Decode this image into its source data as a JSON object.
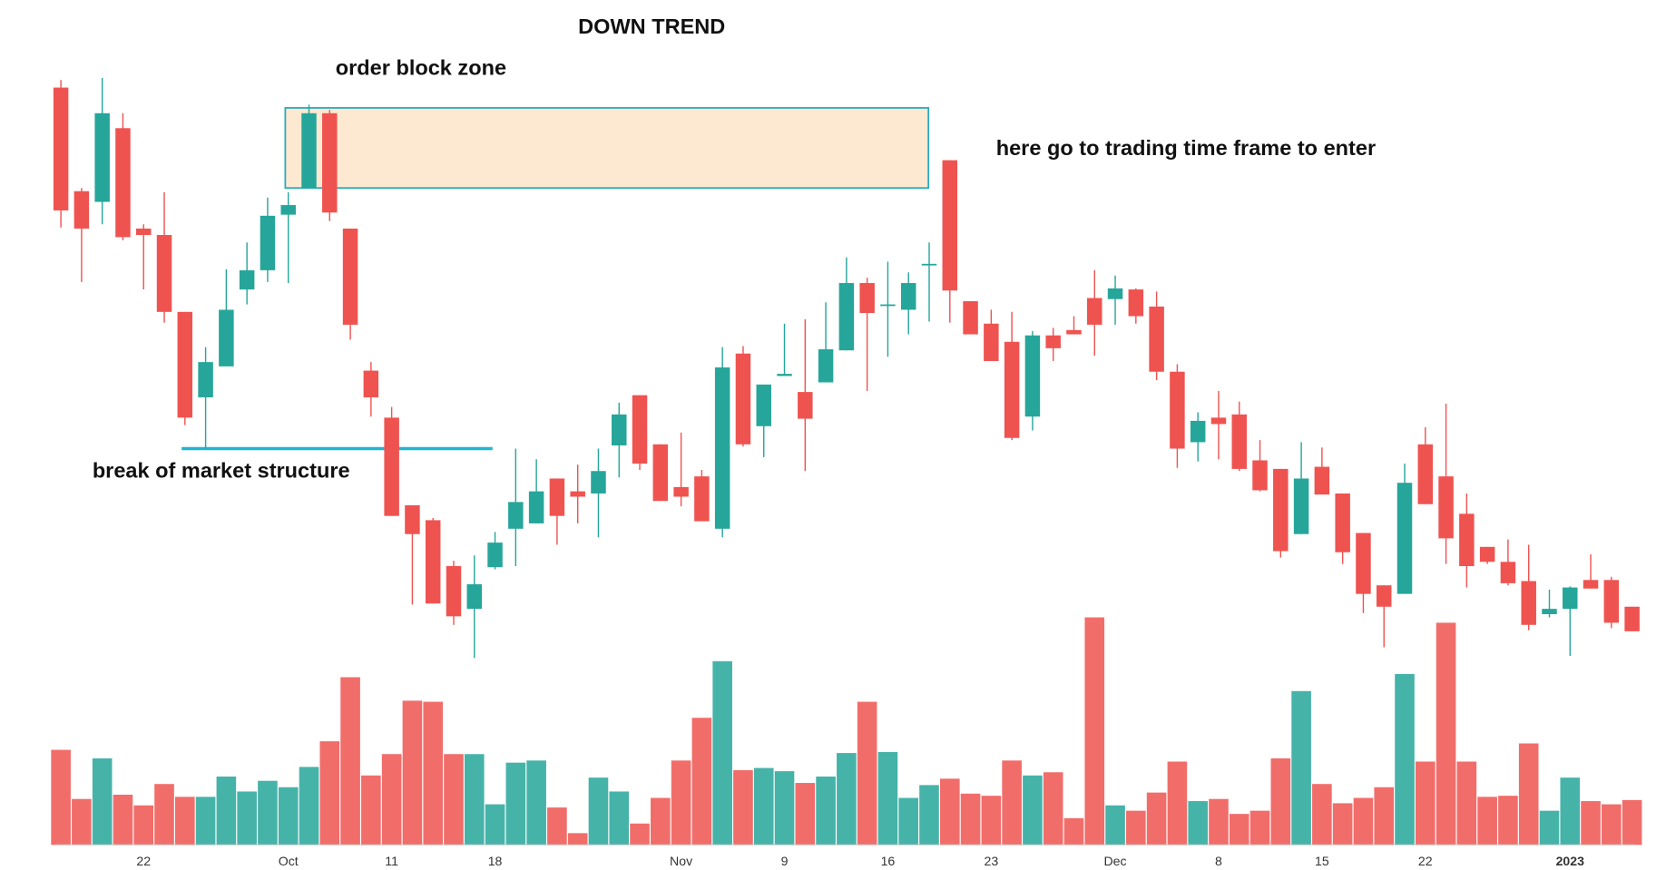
{
  "chart_data": {
    "type": "candlestick",
    "title": "DOWN TREND",
    "categories": [
      null,
      null,
      null,
      null,
      "22",
      null,
      null,
      null,
      null,
      null,
      null,
      "Oct",
      null,
      null,
      null,
      null,
      "11",
      null,
      null,
      null,
      null,
      "18",
      null,
      null,
      null,
      null,
      null,
      null,
      null,
      null,
      "Nov",
      null,
      null,
      null,
      null,
      "9",
      null,
      null,
      null,
      null,
      "16",
      null,
      null,
      null,
      null,
      "23",
      null,
      null,
      null,
      null,
      null,
      "Dec",
      null,
      null,
      null,
      null,
      "8",
      null,
      null,
      null,
      null,
      "15",
      null,
      null,
      null,
      null,
      "22",
      null,
      null,
      null,
      null,
      null,
      null,
      "2023",
      null,
      null,
      null
    ],
    "open": [
      568,
      471,
      461,
      530,
      436,
      430,
      358,
      278,
      307,
      379,
      397,
      449,
      474,
      544,
      436,
      303,
      259,
      177,
      163,
      120,
      80,
      119,
      155,
      160,
      202,
      190,
      188,
      233,
      280,
      234,
      194,
      204,
      155,
      319,
      251,
      298,
      283,
      292,
      322,
      385,
      364,
      360,
      402,
      500,
      368,
      347,
      330,
      260,
      336,
      341,
      371,
      370,
      379,
      363,
      302,
      236,
      259,
      262,
      219,
      211,
      150,
      213,
      188,
      151,
      102,
      94,
      234,
      204,
      169,
      138,
      124,
      106,
      75,
      80,
      107,
      107,
      82
    ],
    "high": [
      575,
      474,
      577,
      544,
      440,
      470,
      358,
      325,
      398,
      423,
      465,
      470,
      552,
      547,
      436,
      311,
      269,
      177,
      165,
      125,
      130,
      152,
      230,
      220,
      202,
      215,
      230,
      273,
      280,
      234,
      245,
      210,
      325,
      326,
      290,
      347,
      351,
      367,
      409,
      390,
      405,
      395,
      423,
      500,
      368,
      360,
      358,
      340,
      343,
      354,
      397,
      392,
      380,
      377,
      309,
      264,
      284,
      274,
      238,
      211,
      236,
      231,
      188,
      151,
      102,
      216,
      250,
      272,
      188,
      138,
      145,
      140,
      98,
      101,
      131,
      110,
      82
    ],
    "low": [
      437,
      386,
      440,
      425,
      379,
      348,
      252,
      230,
      307,
      365,
      386,
      385,
      474,
      443,
      332,
      260,
      167,
      84,
      85,
      65,
      34,
      117,
      120,
      160,
      140,
      160,
      147,
      203,
      210,
      181,
      176,
      162,
      147,
      232,
      222,
      298,
      209,
      292,
      322,
      284,
      316,
      337,
      349,
      348,
      337,
      312,
      238,
      247,
      312,
      337,
      317,
      346,
      347,
      294,
      212,
      218,
      220,
      209,
      190,
      128,
      150,
      187,
      122,
      76,
      44,
      94,
      178,
      122,
      100,
      122,
      102,
      60,
      72,
      36,
      99,
      62,
      59
    ],
    "close": [
      453,
      436,
      544,
      428,
      430,
      358,
      259,
      311,
      360,
      397,
      448,
      458,
      544,
      451,
      346,
      278,
      167,
      150,
      85,
      73,
      103,
      142,
      180,
      190,
      167,
      185,
      209,
      262,
      216,
      181,
      185,
      162,
      306,
      234,
      290,
      300,
      258,
      323,
      385,
      357,
      365,
      385,
      403,
      378,
      337,
      312,
      240,
      336,
      324,
      337,
      346,
      380,
      354,
      302,
      230,
      256,
      253,
      211,
      191,
      134,
      202,
      187,
      133,
      94,
      82,
      198,
      178,
      146,
      120,
      124,
      104,
      65,
      80,
      100,
      99,
      67,
      59
    ],
    "volume": [
      89,
      43,
      81,
      47,
      37,
      57,
      45,
      45,
      64,
      50,
      60,
      54,
      73,
      97,
      157,
      65,
      85,
      135,
      134,
      85,
      85,
      38,
      77,
      79,
      35,
      11,
      63,
      50,
      20,
      44,
      79,
      119,
      172,
      70,
      72,
      69,
      58,
      64,
      86,
      134,
      87,
      44,
      56,
      62,
      48,
      46,
      79,
      65,
      68,
      25,
      213,
      37,
      32,
      49,
      78,
      41,
      43,
      29,
      32,
      81,
      144,
      57,
      39,
      44,
      54,
      160,
      78,
      208,
      78,
      45,
      46,
      95,
      32,
      63,
      41,
      38,
      42
    ],
    "up_color": "#26a69a",
    "down_color": "#ef5350",
    "ylim": [
      30,
      590
    ],
    "volume_ylim": [
      0,
      250
    ],
    "order_block": {
      "label": "order block zone",
      "top": 549,
      "bottom": 474,
      "fill": "#fde9d1",
      "stroke": "#26a9c0"
    },
    "market_structure": {
      "label": "break of market structure",
      "level": 230,
      "color": "#1fb5d0"
    },
    "entry_note": "here go to trading time frame to enter"
  }
}
